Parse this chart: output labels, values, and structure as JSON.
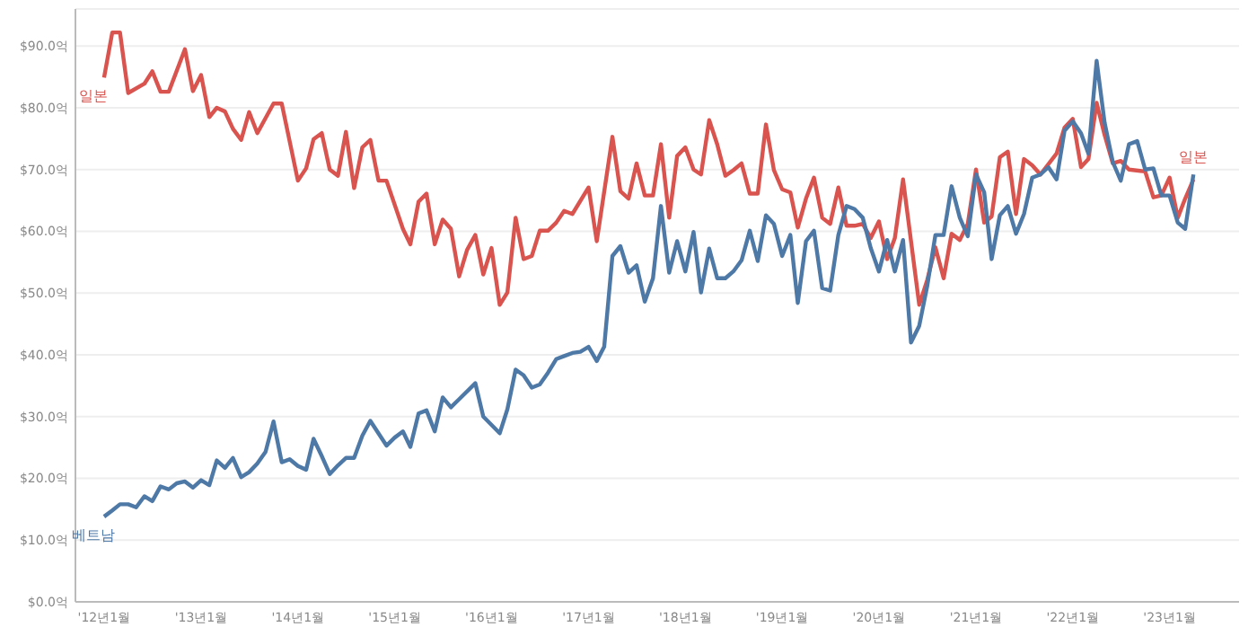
{
  "chart_data": {
    "type": "line",
    "series": [
      {
        "name": "일본",
        "color": "#d9534f",
        "x": [
          "2012-01",
          "2012-02",
          "2012-03",
          "2012-04",
          "2012-06",
          "2012-07",
          "2012-08",
          "2012-09",
          "2012-11",
          "2012-12",
          "2013-01",
          "2013-02",
          "2013-03",
          "2013-04",
          "2013-05",
          "2013-06",
          "2013-07",
          "2013-08",
          "2013-10",
          "2013-11",
          "2014-01",
          "2014-02",
          "2014-03",
          "2014-04",
          "2014-05",
          "2014-06",
          "2014-07",
          "2014-08",
          "2014-09",
          "2014-10",
          "2014-11",
          "2014-12",
          "2015-02",
          "2015-03",
          "2015-04",
          "2015-05",
          "2015-06",
          "2015-07",
          "2015-08",
          "2015-09",
          "2015-10",
          "2015-11",
          "2015-12",
          "2016-01",
          "2016-02",
          "2016-03",
          "2016-04",
          "2016-05",
          "2016-06",
          "2016-07",
          "2016-08",
          "2016-09",
          "2016-10",
          "2016-11",
          "2017-01",
          "2017-02",
          "2017-04",
          "2017-05",
          "2017-06",
          "2017-07",
          "2017-08",
          "2017-09",
          "2017-10",
          "2017-11",
          "2017-12",
          "2018-01",
          "2018-02",
          "2018-03",
          "2018-04",
          "2018-05",
          "2018-06",
          "2018-07",
          "2018-08",
          "2018-09",
          "2018-10",
          "2018-11",
          "2018-12",
          "2019-01",
          "2019-02",
          "2019-03",
          "2019-04",
          "2019-05",
          "2019-06",
          "2019-07",
          "2019-08",
          "2019-09",
          "2019-10",
          "2019-11",
          "2019-12",
          "2020-01",
          "2020-02",
          "2020-03",
          "2020-04",
          "2020-06",
          "2020-07",
          "2020-08",
          "2020-09",
          "2020-10",
          "2020-11",
          "2020-12",
          "2021-01",
          "2021-02",
          "2021-03",
          "2021-04",
          "2021-05",
          "2021-06",
          "2021-07",
          "2021-08",
          "2021-09",
          "2021-11",
          "2021-12",
          "2022-01",
          "2022-02",
          "2022-03",
          "2022-04",
          "2022-05",
          "2022-06",
          "2022-07",
          "2022-08",
          "2022-10",
          "2022-11",
          "2022-12",
          "2023-01",
          "2023-02",
          "2023-03",
          "2023-04"
        ],
        "values": [
          84.9,
          92.2,
          92.2,
          82.4,
          83.9,
          85.9,
          82.6,
          82.6,
          89.5,
          82.7,
          85.3,
          78.5,
          80.0,
          79.4,
          76.6,
          74.8,
          79.3,
          75.9,
          80.7,
          80.7,
          68.2,
          70.2,
          74.9,
          75.9,
          70.0,
          69.0,
          76.1,
          67.0,
          73.6,
          74.8,
          68.2,
          68.2,
          60.4,
          57.9,
          64.8,
          66.1,
          57.9,
          61.9,
          60.4,
          52.7,
          57.0,
          59.4,
          53.0,
          57.3,
          48.1,
          50.1,
          62.2,
          55.5,
          56.0,
          60.1,
          60.1,
          61.4,
          63.3,
          62.8,
          67.1,
          58.4,
          75.3,
          66.5,
          65.3,
          71.0,
          65.8,
          65.8,
          74.1,
          62.2,
          72.2,
          73.6,
          70.0,
          69.2,
          78.0,
          74.1,
          69.0,
          69.9,
          71.0,
          66.1,
          66.1,
          77.3,
          69.9,
          66.8,
          66.3,
          60.6,
          65.3,
          68.7,
          62.2,
          61.2,
          67.1,
          60.9,
          60.9,
          61.2,
          58.9,
          61.6,
          55.5,
          58.9,
          68.4,
          48.1,
          52.1,
          57.4,
          52.4,
          59.6,
          58.6,
          61.2,
          70.0,
          61.4,
          62.4,
          72.0,
          72.9,
          62.8,
          71.7,
          70.7,
          69.2,
          72.6,
          76.8,
          78.2,
          70.4,
          71.7,
          80.8,
          75.6,
          71.0,
          71.4,
          70.0,
          69.7,
          65.5,
          65.8,
          68.7,
          62.2,
          65.3,
          68.4
        ]
      },
      {
        "name": "베트남",
        "color": "#4e79a7",
        "x": [
          "2012-01",
          "2012-02",
          "2012-03",
          "2012-04",
          "2012-05",
          "2012-06",
          "2012-07",
          "2012-08",
          "2012-09",
          "2012-10",
          "2012-11",
          "2012-12",
          "2013-01",
          "2013-02",
          "2013-03",
          "2013-04",
          "2013-05",
          "2013-06",
          "2013-07",
          "2013-08",
          "2013-09",
          "2013-10",
          "2013-11",
          "2013-12",
          "2014-01",
          "2014-02",
          "2014-03",
          "2014-04",
          "2014-05",
          "2014-06",
          "2014-07",
          "2014-08",
          "2014-09",
          "2014-10",
          "2014-12",
          "2015-01",
          "2015-02",
          "2015-03",
          "2015-04",
          "2015-05",
          "2015-06",
          "2015-07",
          "2015-08",
          "2015-11",
          "2015-12",
          "2016-02",
          "2016-03",
          "2016-04",
          "2016-05",
          "2016-06",
          "2016-07",
          "2016-08",
          "2016-09",
          "2016-10",
          "2016-11",
          "2016-12",
          "2017-01",
          "2017-02",
          "2017-03",
          "2017-04",
          "2017-05",
          "2017-06",
          "2017-07",
          "2017-08",
          "2017-09",
          "2017-10",
          "2017-11",
          "2017-12",
          "2018-01",
          "2018-02",
          "2018-03",
          "2018-04",
          "2018-05",
          "2018-06",
          "2018-07",
          "2018-08",
          "2018-09",
          "2018-10",
          "2018-11",
          "2018-12",
          "2019-01",
          "2019-02",
          "2019-03",
          "2019-04",
          "2019-05",
          "2019-06",
          "2019-07",
          "2019-08",
          "2019-09",
          "2019-10",
          "2019-11",
          "2019-12",
          "2020-01",
          "2020-02",
          "2020-03",
          "2020-04",
          "2020-05",
          "2020-06",
          "2020-07",
          "2020-08",
          "2020-09",
          "2020-10",
          "2020-11",
          "2020-12",
          "2021-01",
          "2021-02",
          "2021-03",
          "2021-04",
          "2021-05",
          "2021-06",
          "2021-07",
          "2021-08",
          "2021-09",
          "2021-10",
          "2021-11",
          "2021-12",
          "2022-01",
          "2022-02",
          "2022-03",
          "2022-04",
          "2022-05",
          "2022-06",
          "2022-07",
          "2022-08",
          "2022-09",
          "2022-10",
          "2022-11",
          "2022-12",
          "2023-01",
          "2023-02",
          "2023-03",
          "2023-04"
        ],
        "values": [
          13.8,
          14.8,
          15.8,
          15.8,
          15.3,
          17.1,
          16.3,
          18.7,
          18.2,
          19.2,
          19.5,
          18.5,
          19.7,
          18.9,
          22.9,
          21.7,
          23.3,
          20.2,
          21.0,
          22.4,
          24.3,
          29.2,
          22.6,
          23.1,
          22.0,
          21.4,
          26.4,
          23.6,
          20.7,
          22.1,
          23.3,
          23.3,
          26.9,
          29.3,
          25.3,
          26.6,
          27.6,
          25.1,
          30.5,
          31.0,
          27.6,
          33.1,
          31.5,
          35.4,
          30.0,
          27.3,
          31.2,
          37.6,
          36.7,
          34.7,
          35.2,
          37.1,
          39.3,
          39.8,
          40.3,
          40.5,
          41.3,
          39.0,
          41.3,
          56.0,
          57.6,
          53.3,
          54.5,
          48.6,
          52.4,
          64.1,
          53.3,
          58.4,
          53.5,
          59.9,
          50.1,
          57.2,
          52.4,
          52.4,
          53.5,
          55.3,
          60.1,
          55.2,
          62.6,
          61.2,
          56.0,
          59.4,
          48.4,
          58.4,
          60.1,
          50.8,
          50.4,
          59.4,
          64.1,
          63.6,
          62.2,
          57.3,
          53.5,
          58.6,
          53.5,
          58.6,
          42.0,
          44.7,
          51.1,
          59.4,
          59.4,
          67.3,
          62.2,
          59.2,
          69.2,
          66.3,
          55.5,
          62.6,
          64.1,
          59.6,
          62.8,
          68.7,
          69.2,
          70.4,
          68.4,
          76.3,
          77.8,
          75.9,
          72.6,
          87.6,
          77.6,
          71.2,
          68.2,
          74.1,
          74.6,
          70.0,
          70.2,
          65.8,
          65.8,
          61.4,
          60.4,
          69.2
        ]
      }
    ],
    "annotations": [
      {
        "text": "일본",
        "x": "2023-04",
        "y": 68.4
      }
    ],
    "xlim": [
      "2011-09-15",
      "2023-09-20"
    ],
    "xticks": [
      {
        "value": "2012-01",
        "label": "'12년1월"
      },
      {
        "value": "2013-01",
        "label": "'13년1월"
      },
      {
        "value": "2014-01",
        "label": "'14년1월"
      },
      {
        "value": "2015-01",
        "label": "'15년1월"
      },
      {
        "value": "2016-01",
        "label": "'16년1월"
      },
      {
        "value": "2017-01",
        "label": "'17년1월"
      },
      {
        "value": "2018-01",
        "label": "'18년1월"
      },
      {
        "value": "2019-01",
        "label": "'19년1월"
      },
      {
        "value": "2020-01",
        "label": "'20년1월"
      },
      {
        "value": "2021-01",
        "label": "'21년1월"
      },
      {
        "value": "2022-01",
        "label": "'22년1월"
      },
      {
        "value": "2023-01",
        "label": "'23년1월"
      }
    ],
    "ylim": [
      0,
      96
    ],
    "yticks": [
      {
        "value": 0,
        "label": "$0.0억"
      },
      {
        "value": 10,
        "label": "$10.0억"
      },
      {
        "value": 20,
        "label": "$20.0억"
      },
      {
        "value": 30,
        "label": "$30.0억"
      },
      {
        "value": 40,
        "label": "$40.0억"
      },
      {
        "value": 50,
        "label": "$50.0억"
      },
      {
        "value": 60,
        "label": "$60.0억"
      },
      {
        "value": 70,
        "label": "$70.0억"
      },
      {
        "value": 80,
        "label": "$80.0억"
      },
      {
        "value": 90,
        "label": "$90.0억"
      }
    ],
    "grid": "y",
    "legend": false,
    "marker": "none",
    "line_style": "solid"
  }
}
